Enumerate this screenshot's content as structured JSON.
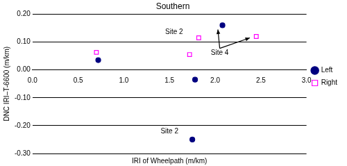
{
  "chart_data": {
    "type": "scatter",
    "title": "Southern",
    "x_label": "IRI of Wheelpath (m/km)",
    "y_label": "DNC IRI–T-6600 (m/km)",
    "xlim": [
      0,
      3
    ],
    "xticks": [
      {
        "value": 0,
        "label": "0.0"
      },
      {
        "value": 0.5,
        "label": "0.5"
      },
      {
        "value": 1,
        "label": "1.0"
      },
      {
        "value": 1.5,
        "label": "1.5"
      },
      {
        "value": 2,
        "label": "2.0"
      },
      {
        "value": 2.5,
        "label": "2.5"
      },
      {
        "value": 3,
        "label": "3.0"
      }
    ],
    "ylim": [
      -0.3,
      0.2
    ],
    "yticks": [
      {
        "value": -0.3,
        "label": "-0.30"
      },
      {
        "value": -0.2,
        "label": "-0.20"
      },
      {
        "value": -0.1,
        "label": "-0.10"
      },
      {
        "value": 0,
        "label": "0.00"
      },
      {
        "value": 0.1,
        "label": "0.10"
      },
      {
        "value": 0.2,
        "label": "0.20"
      }
    ],
    "grid": true,
    "legend": "right",
    "series": [
      {
        "name": "Left",
        "color": "#000080",
        "marker": "circle",
        "x": [
          0.72,
          1.78,
          2.08,
          1.75
        ],
        "values": [
          0.035,
          -0.035,
          0.16,
          -0.25
        ]
      },
      {
        "name": "Right",
        "color": "#ff00ff",
        "marker": "square-open",
        "x": [
          0.7,
          1.72,
          1.82,
          2.45
        ],
        "values": [
          0.063,
          0.055,
          0.115,
          0.12
        ]
      }
    ],
    "annotations": [
      {
        "text": "Site 2",
        "x": 1.55,
        "y": 0.135
      },
      {
        "text": "Site 4",
        "x": 2.05,
        "y": 0.06,
        "arrows": [
          [
            2.03,
            0.145
          ],
          [
            2.38,
            0.115
          ]
        ]
      },
      {
        "text": "Site 2",
        "x": 1.5,
        "y": -0.22
      }
    ]
  }
}
